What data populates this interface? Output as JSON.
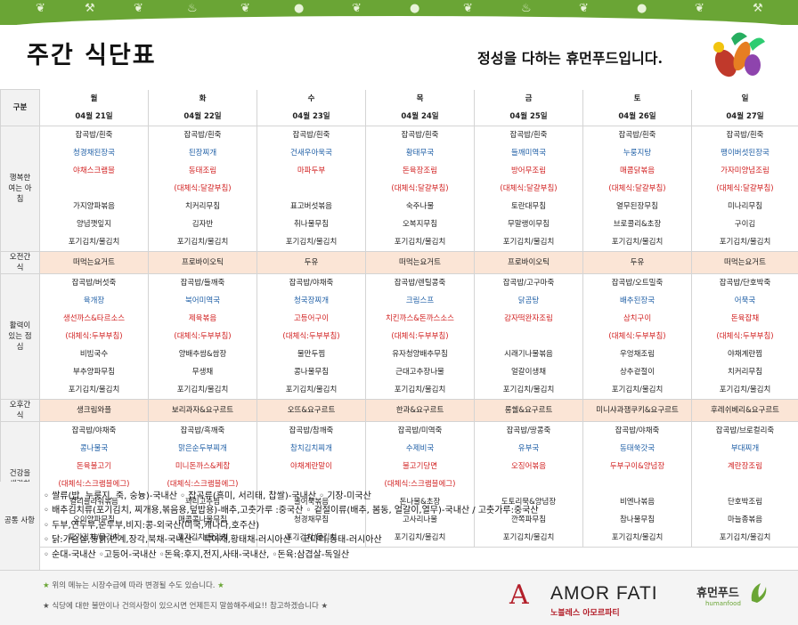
{
  "header": {
    "title": "주간 식단표",
    "slogan": "정성을 다하는 휴먼푸드입니다."
  },
  "table": {
    "corner": "구분",
    "days": [
      {
        "day": "월",
        "date": "04월 21일"
      },
      {
        "day": "화",
        "date": "04월 22일"
      },
      {
        "day": "수",
        "date": "04월 23일"
      },
      {
        "day": "목",
        "date": "04월 24일"
      },
      {
        "day": "금",
        "date": "04월 25일"
      },
      {
        "day": "토",
        "date": "04월 26일"
      },
      {
        "day": "일",
        "date": "04월 27일"
      }
    ],
    "sections": [
      {
        "label": "행복한 여는 아침",
        "rows": [
          [
            "잡곡밥/흰죽",
            "잡곡밥/흰죽",
            "잡곡밥/흰죽",
            "잡곡밥/흰죽",
            "잡곡밥/흰죽",
            "잡곡밥/흰죽",
            "잡곡밥/흰죽"
          ],
          [
            "청경채된장국",
            "된장찌개",
            "건새우아욱국",
            "황태무국",
            "들깨미역국",
            "누룽지탕",
            "팽이버섯된장국"
          ],
          [
            "야채스크램블",
            "동태조림",
            "마파두부",
            "돈육장조림",
            "방어무조림",
            "매콤닭볶음",
            "가자미양념조림"
          ],
          [
            "",
            "(대체식:달걀부침)",
            "",
            "(대체식:달걀부침)",
            "(대체식:달걀부침)",
            "(대체식:달걀부침)",
            "(대체식:달걀부침)"
          ],
          [
            "가지양파볶음",
            "치커리무침",
            "표고버섯볶음",
            "숙주나물",
            "토란대무침",
            "열무된장무침",
            "미나리무침"
          ],
          [
            "양념깻잎지",
            "김자반",
            "취나물무침",
            "오복지무침",
            "무말랭이무침",
            "브로콜리&초장",
            "구이김"
          ],
          [
            "포기김치/물김치",
            "포기김치/물김치",
            "포기김치/물김치",
            "포기김치/물김치",
            "포기김치/물김치",
            "포기김치/물김치",
            "포기김치/물김치"
          ]
        ],
        "colors": [
          "",
          "blue",
          "red",
          "red",
          "",
          "",
          ""
        ]
      },
      {
        "label": "오전간식",
        "snack": true,
        "rows": [
          [
            "떠먹는요거트",
            "프로바이오틱",
            "두유",
            "떠먹는요거트",
            "프로바이오틱",
            "두유",
            "떠먹는요거트"
          ]
        ]
      },
      {
        "label": "활력이 있는 점심",
        "rows": [
          [
            "잡곡밥/버섯죽",
            "잡곡밥/들깨죽",
            "잡곡밥/야채죽",
            "잡곡밥/렌틸콩죽",
            "잡곡밥/고구마죽",
            "잡곡밥/오트밀죽",
            "잡곡밥/단호박죽"
          ],
          [
            "육개장",
            "북어미역국",
            "청국장찌개",
            "크림스프",
            "닭곰탕",
            "배추된장국",
            "어묵국"
          ],
          [
            "생선까스&타르소스",
            "제육볶음",
            "고등어구이",
            "치킨까스&돈까스소스",
            "감자떡완자조림",
            "삼치구이",
            "돈육잡채"
          ],
          [
            "(대체식:두부부침)",
            "(대체식:두부부침)",
            "(대체식:두부부침)",
            "(대체식:두부부침)",
            "",
            "(대체식:두부부침)",
            "(대체식:두부부침)"
          ],
          [
            "비빔국수",
            "양배추쌈&쌈장",
            "물만두찜",
            "유자청양배추무침",
            "시래기나물볶음",
            "우엉채조림",
            "야채계란찜"
          ],
          [
            "부추양파무침",
            "무생채",
            "콩나물무침",
            "근대고추장나물",
            "얼갈이생채",
            "상추겉절이",
            "치커리무침"
          ],
          [
            "포기김치/물김치",
            "포기김치/물김치",
            "포기김치/물김치",
            "포기김치/물김치",
            "포기김치/물김치",
            "포기김치/물김치",
            "포기김치/물김치"
          ]
        ],
        "colors": [
          "",
          "blue",
          "red",
          "red",
          "",
          "",
          ""
        ]
      },
      {
        "label": "오후간식",
        "snack": true,
        "rows": [
          [
            "생크림와플",
            "보리과자&요구르트",
            "오뜨&요구르트",
            "한과&요구르트",
            "롱쉘&요구르트",
            "미니샤과잼쿠키&요구르트",
            "후레쉬베리&요구르트"
          ]
        ]
      },
      {
        "label": "건강을 생각하는 저녁",
        "rows": [
          [
            "잡곡밥/야채죽",
            "잡곡밥/흑깨죽",
            "잡곡밥/참깨죽",
            "잡곡밥/미역죽",
            "잡곡밥/땅콩죽",
            "잡곡밥/야채죽",
            "잡곡밥/브로컬리죽"
          ],
          [
            "콩나물국",
            "맑은순두부찌개",
            "참치김치찌개",
            "수제비국",
            "유부국",
            "동태쑥갓국",
            "부대찌개"
          ],
          [
            "돈육불고기",
            "미니돈까스&케찹",
            "야채계란말이",
            "불고기당면",
            "오징어볶음",
            "두부구이&양념장",
            "계란장조림"
          ],
          [
            "(대체식:스크램블에그)",
            "(대체식:스크램블에그)",
            "",
            "(대체식:스크램블에그)",
            "",
            "",
            ""
          ],
          [
            "컬리플라워볶음",
            "꽈리고추찜",
            "볼어묵볶음",
            "돈나물&초장",
            "도토리묵&양념장",
            "비엔나볶음",
            "단호박조림"
          ],
          [
            "오이양파무침",
            "매콤콩나물무침",
            "청경채무침",
            "고사리나물",
            "깐쪽파무침",
            "참나물무침",
            "마늘종볶음"
          ],
          [
            "포기김치/물김치",
            "포기김치/물김치",
            "포기김치/물김치",
            "포기김치/물김치",
            "포기김치/물김치",
            "포기김치/물김치",
            "포기김치/물김치"
          ]
        ],
        "colors": [
          "",
          "blue",
          "red",
          "red",
          "",
          "",
          ""
        ]
      }
    ]
  },
  "origin": {
    "label": "공통 사항",
    "lines": [
      "◦ 쌀류(밥, 누룽지, 죽, 숭늉)-국내산  ◦ 잡곡류(흑미, 서리태, 찹쌀)-국내산  ◦ 기장-미국산",
      "◦ 배추김치류(포기김치, 찌개용,볶음용,덮밥용)-배추,고춧가루 :중국산  ◦ 겉절이류(배추, 봄동, 얼갈이,열무)-국내산 / 고춧가루:중국산",
      "◦ 두부,연두부,순두부,비지:콩-외국산(미국,캐나다,호주산)",
      "◦ 닭:가슴살,통닭,반계,장각,북채-국내산  ◦ 북어채,황태채-러시아산  ◦ 코다리,동태-러시아산",
      "◦ 순대-국내산 ◦고등어-국내산 ◦돈육:후지,전지,사태-국내산, ◦돈육:삼겹살-독일산"
    ]
  },
  "footer": {
    "note1": "위의 메뉴는 시장수급에 따라 변경될 수도 있습니다.",
    "note2": "식당에 대한 불만이나 건의사항이 있으시면 언제든지 말씀해주세요!! 참고하겠습니다",
    "star": "★",
    "amor_mark": "A",
    "amor_name": "AMOR FATI",
    "amor_sub": "노블레스 아모르파티",
    "human_ko": "휴먼푸드",
    "human_en": "humanfood"
  }
}
